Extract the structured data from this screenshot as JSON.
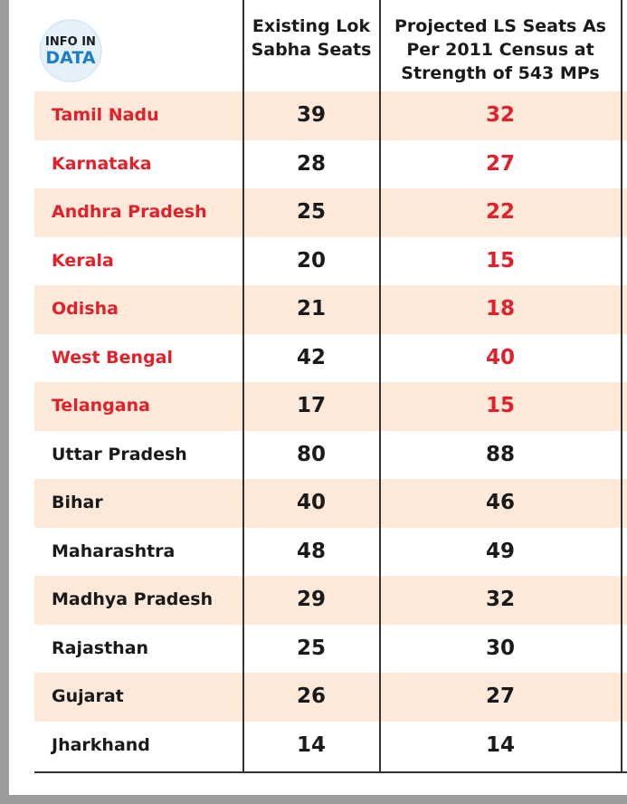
{
  "logo": {
    "line1": "INFO IN",
    "line2": "DATA"
  },
  "table": {
    "columns": [
      "Existing Lok Sabha Seats",
      "Projected LS Seats As Per 2011 Census at Strength of 543 MPs"
    ],
    "shade_color": "#fce9da",
    "rows": [
      {
        "state": "Tamil Nadu",
        "existing": 39,
        "projected": 32,
        "color": "#e3202a"
      },
      {
        "state": "Karnataka",
        "existing": 28,
        "projected": 27,
        "color": "#e3202a"
      },
      {
        "state": "Andhra Pradesh",
        "existing": 25,
        "projected": 22,
        "color": "#e3202a"
      },
      {
        "state": "Kerala",
        "existing": 20,
        "projected": 15,
        "color": "#e3202a"
      },
      {
        "state": "Odisha",
        "existing": 21,
        "projected": 18,
        "color": "#e3202a"
      },
      {
        "state": "West Bengal",
        "existing": 42,
        "projected": 40,
        "color": "#e3202a"
      },
      {
        "state": "Telangana",
        "existing": 17,
        "projected": 15,
        "color": "#e3202a"
      },
      {
        "state": "Uttar Pradesh",
        "existing": 80,
        "projected": 88,
        "color": "#1a1a1a"
      },
      {
        "state": "Bihar",
        "existing": 40,
        "projected": 46,
        "color": "#1a1a1a"
      },
      {
        "state": "Maharashtra",
        "existing": 48,
        "projected": 49,
        "color": "#1a1a1a"
      },
      {
        "state": "Madhya Pradesh",
        "existing": 29,
        "projected": 32,
        "color": "#1a1a1a"
      },
      {
        "state": "Rajasthan",
        "existing": 25,
        "projected": 30,
        "color": "#1a1a1a"
      },
      {
        "state": "Gujarat",
        "existing": 26,
        "projected": 27,
        "color": "#1a1a1a"
      },
      {
        "state": "Jharkhand",
        "existing": 14,
        "projected": 14,
        "color": "#1a1a1a"
      }
    ]
  }
}
